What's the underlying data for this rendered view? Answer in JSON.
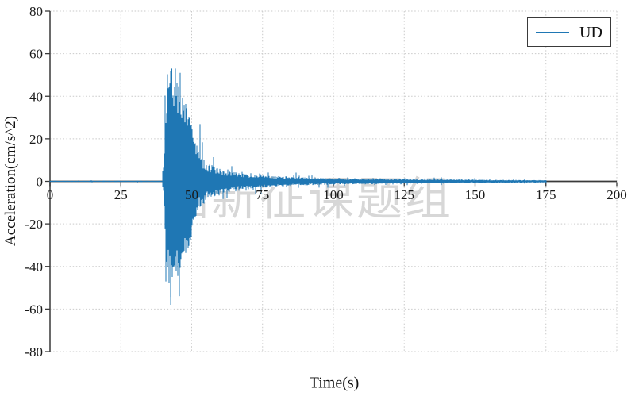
{
  "watermark": {
    "text": "陆新征课题组",
    "color": "#d7d7d7"
  },
  "chart_data": {
    "type": "line",
    "title": "",
    "xlabel": "Time(s)",
    "ylabel": "Acceleration(cm/s^2)",
    "xlim": [
      0,
      200
    ],
    "ylim": [
      -80,
      80
    ],
    "xticks": [
      0,
      25,
      50,
      75,
      100,
      125,
      150,
      175,
      200
    ],
    "yticks": [
      80,
      60,
      40,
      20,
      0,
      -20,
      -40,
      -60,
      -80
    ],
    "grid": "dotted",
    "grid_color": "#c9c9c9",
    "legend": {
      "position": "upper right",
      "entries": [
        {
          "label": "UD",
          "color": "#1f77b4"
        }
      ]
    },
    "series": [
      {
        "name": "UD",
        "color": "#1f77b4",
        "t_start": 0,
        "t_end": 175,
        "peak_positive": {
          "t": 43.0,
          "value": 53
        },
        "peak_negative": {
          "t": 42.6,
          "value": -58
        },
        "envelope": [
          [
            0,
            0.25
          ],
          [
            39.5,
            0.3
          ],
          [
            40.2,
            8
          ],
          [
            40.6,
            30
          ],
          [
            41,
            42
          ],
          [
            42,
            48
          ],
          [
            43,
            52
          ],
          [
            44,
            46
          ],
          [
            45,
            47
          ],
          [
            46,
            43
          ],
          [
            47,
            40
          ],
          [
            48,
            36
          ],
          [
            49,
            31
          ],
          [
            50,
            27
          ],
          [
            51,
            21
          ],
          [
            52,
            16
          ],
          [
            53,
            13
          ],
          [
            54,
            11
          ],
          [
            55,
            9.5
          ],
          [
            57,
            8
          ],
          [
            60,
            6
          ],
          [
            63,
            5
          ],
          [
            66,
            4.2
          ],
          [
            70,
            3.4
          ],
          [
            75,
            2.9
          ],
          [
            80,
            2.5
          ],
          [
            85,
            2.2
          ],
          [
            90,
            1.9
          ],
          [
            95,
            1.7
          ],
          [
            100,
            1.5
          ],
          [
            110,
            1.3
          ],
          [
            120,
            1.2
          ],
          [
            130,
            1.05
          ],
          [
            140,
            0.95
          ],
          [
            150,
            0.85
          ],
          [
            160,
            0.75
          ],
          [
            175,
            0.6
          ]
        ],
        "description": "Vertical (UD) ground acceleration record: near-zero until t≈40 s, strong-motion burst of ±45–58 cm/s^2 during t≈40–50 s, coda decaying gradually until the trace ends at t≈175 s"
      }
    ]
  }
}
